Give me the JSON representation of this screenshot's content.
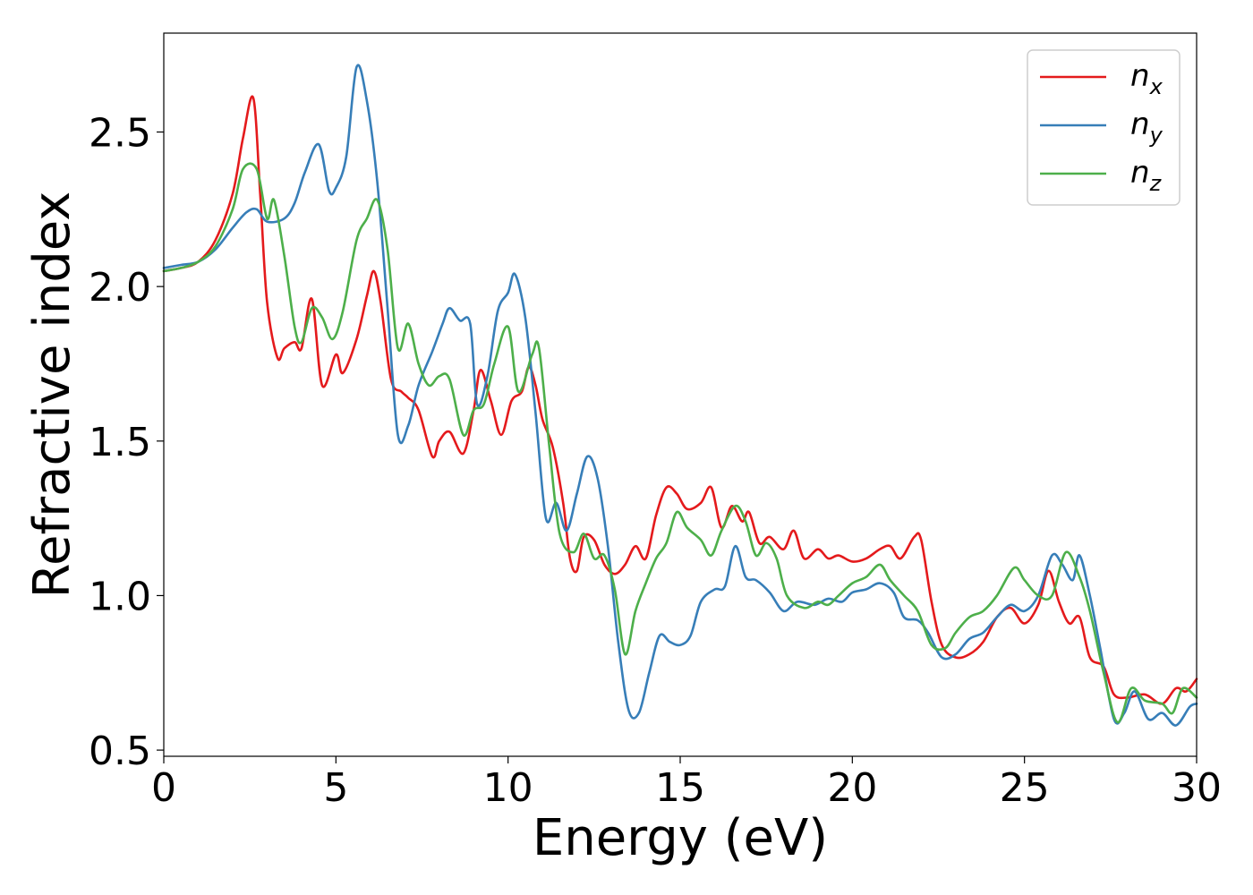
{
  "chart_data": {
    "type": "line",
    "title": "",
    "xlabel": "Energy (eV)",
    "ylabel": "Refractive index",
    "xlim": [
      0,
      30
    ],
    "ylim": [
      0.48,
      2.82
    ],
    "xticks": [
      0,
      5,
      10,
      15,
      20,
      25,
      30
    ],
    "xtick_labels": [
      "0",
      "5",
      "10",
      "15",
      "20",
      "25",
      "30"
    ],
    "yticks": [
      0.5,
      1.0,
      1.5,
      2.0,
      2.5
    ],
    "ytick_labels": [
      "0.5",
      "1.0",
      "1.5",
      "2.0",
      "2.5"
    ],
    "grid": false,
    "legend_position": "top-right",
    "series": [
      {
        "name": "n_x",
        "label_base": "n",
        "label_sub": "x",
        "color": "#e41a1c",
        "points": [
          [
            0,
            2.05
          ],
          [
            0.5,
            2.06
          ],
          [
            1,
            2.08
          ],
          [
            1.5,
            2.15
          ],
          [
            2,
            2.3
          ],
          [
            2.3,
            2.48
          ],
          [
            2.6,
            2.61
          ],
          [
            2.8,
            2.3
          ],
          [
            3.0,
            1.95
          ],
          [
            3.3,
            1.77
          ],
          [
            3.5,
            1.8
          ],
          [
            3.8,
            1.82
          ],
          [
            4.0,
            1.8
          ],
          [
            4.3,
            1.96
          ],
          [
            4.6,
            1.68
          ],
          [
            5.0,
            1.78
          ],
          [
            5.2,
            1.72
          ],
          [
            5.6,
            1.83
          ],
          [
            5.9,
            1.97
          ],
          [
            6.1,
            2.05
          ],
          [
            6.3,
            1.95
          ],
          [
            6.6,
            1.7
          ],
          [
            6.9,
            1.66
          ],
          [
            7.1,
            1.64
          ],
          [
            7.4,
            1.6
          ],
          [
            7.8,
            1.45
          ],
          [
            8.0,
            1.5
          ],
          [
            8.3,
            1.53
          ],
          [
            8.7,
            1.46
          ],
          [
            9.0,
            1.6
          ],
          [
            9.2,
            1.73
          ],
          [
            9.5,
            1.63
          ],
          [
            9.8,
            1.52
          ],
          [
            10.1,
            1.63
          ],
          [
            10.4,
            1.66
          ],
          [
            10.6,
            1.74
          ],
          [
            10.8,
            1.68
          ],
          [
            11.0,
            1.57
          ],
          [
            11.3,
            1.48
          ],
          [
            11.6,
            1.3
          ],
          [
            11.8,
            1.12
          ],
          [
            12.0,
            1.08
          ],
          [
            12.2,
            1.19
          ],
          [
            12.5,
            1.18
          ],
          [
            12.8,
            1.1
          ],
          [
            13.1,
            1.07
          ],
          [
            13.4,
            1.1
          ],
          [
            13.7,
            1.16
          ],
          [
            14.0,
            1.12
          ],
          [
            14.3,
            1.26
          ],
          [
            14.6,
            1.35
          ],
          [
            14.9,
            1.33
          ],
          [
            15.2,
            1.28
          ],
          [
            15.6,
            1.3
          ],
          [
            15.9,
            1.35
          ],
          [
            16.2,
            1.22
          ],
          [
            16.5,
            1.29
          ],
          [
            16.8,
            1.24
          ],
          [
            17.0,
            1.27
          ],
          [
            17.3,
            1.17
          ],
          [
            17.6,
            1.19
          ],
          [
            18.0,
            1.15
          ],
          [
            18.3,
            1.21
          ],
          [
            18.6,
            1.12
          ],
          [
            19.0,
            1.15
          ],
          [
            19.3,
            1.12
          ],
          [
            19.6,
            1.13
          ],
          [
            20.0,
            1.11
          ],
          [
            20.4,
            1.12
          ],
          [
            20.8,
            1.15
          ],
          [
            21.1,
            1.16
          ],
          [
            21.4,
            1.12
          ],
          [
            21.8,
            1.19
          ],
          [
            22.0,
            1.18
          ],
          [
            22.3,
            0.98
          ],
          [
            22.6,
            0.84
          ],
          [
            23.0,
            0.8
          ],
          [
            23.4,
            0.81
          ],
          [
            23.8,
            0.85
          ],
          [
            24.2,
            0.93
          ],
          [
            24.6,
            0.96
          ],
          [
            25.0,
            0.91
          ],
          [
            25.4,
            0.97
          ],
          [
            25.7,
            1.08
          ],
          [
            26.0,
            0.98
          ],
          [
            26.3,
            0.91
          ],
          [
            26.6,
            0.93
          ],
          [
            26.9,
            0.8
          ],
          [
            27.3,
            0.77
          ],
          [
            27.6,
            0.68
          ],
          [
            28.0,
            0.67
          ],
          [
            28.5,
            0.68
          ],
          [
            29.0,
            0.65
          ],
          [
            29.4,
            0.7
          ],
          [
            29.7,
            0.69
          ],
          [
            30.0,
            0.73
          ]
        ]
      },
      {
        "name": "n_y",
        "label_base": "n",
        "label_sub": "y",
        "color": "#377eb8",
        "points": [
          [
            0,
            2.06
          ],
          [
            0.5,
            2.07
          ],
          [
            1,
            2.08
          ],
          [
            1.5,
            2.12
          ],
          [
            2,
            2.19
          ],
          [
            2.4,
            2.24
          ],
          [
            2.7,
            2.25
          ],
          [
            3.0,
            2.21
          ],
          [
            3.5,
            2.22
          ],
          [
            3.8,
            2.27
          ],
          [
            4.1,
            2.37
          ],
          [
            4.5,
            2.46
          ],
          [
            4.8,
            2.31
          ],
          [
            5.0,
            2.32
          ],
          [
            5.3,
            2.42
          ],
          [
            5.6,
            2.71
          ],
          [
            5.9,
            2.6
          ],
          [
            6.2,
            2.34
          ],
          [
            6.5,
            1.93
          ],
          [
            6.8,
            1.52
          ],
          [
            7.1,
            1.55
          ],
          [
            7.4,
            1.68
          ],
          [
            7.8,
            1.79
          ],
          [
            8.1,
            1.88
          ],
          [
            8.3,
            1.93
          ],
          [
            8.6,
            1.89
          ],
          [
            8.9,
            1.88
          ],
          [
            9.1,
            1.62
          ],
          [
            9.4,
            1.71
          ],
          [
            9.7,
            1.92
          ],
          [
            10.0,
            1.98
          ],
          [
            10.2,
            2.04
          ],
          [
            10.5,
            1.9
          ],
          [
            10.8,
            1.59
          ],
          [
            11.1,
            1.25
          ],
          [
            11.4,
            1.3
          ],
          [
            11.7,
            1.21
          ],
          [
            12.0,
            1.33
          ],
          [
            12.3,
            1.45
          ],
          [
            12.6,
            1.38
          ],
          [
            12.9,
            1.16
          ],
          [
            13.2,
            0.85
          ],
          [
            13.5,
            0.63
          ],
          [
            13.8,
            0.62
          ],
          [
            14.1,
            0.75
          ],
          [
            14.4,
            0.87
          ],
          [
            14.7,
            0.85
          ],
          [
            15.0,
            0.84
          ],
          [
            15.3,
            0.87
          ],
          [
            15.6,
            0.98
          ],
          [
            16.0,
            1.02
          ],
          [
            16.3,
            1.03
          ],
          [
            16.6,
            1.16
          ],
          [
            16.9,
            1.06
          ],
          [
            17.2,
            1.05
          ],
          [
            17.6,
            1.01
          ],
          [
            18.0,
            0.95
          ],
          [
            18.4,
            0.98
          ],
          [
            18.9,
            0.97
          ],
          [
            19.3,
            0.99
          ],
          [
            19.7,
            0.98
          ],
          [
            20.0,
            1.01
          ],
          [
            20.4,
            1.02
          ],
          [
            20.8,
            1.04
          ],
          [
            21.2,
            1.01
          ],
          [
            21.5,
            0.93
          ],
          [
            21.9,
            0.92
          ],
          [
            22.2,
            0.88
          ],
          [
            22.6,
            0.8
          ],
          [
            23.0,
            0.81
          ],
          [
            23.4,
            0.86
          ],
          [
            23.8,
            0.88
          ],
          [
            24.2,
            0.93
          ],
          [
            24.6,
            0.97
          ],
          [
            25.0,
            0.95
          ],
          [
            25.4,
            1.0
          ],
          [
            25.8,
            1.13
          ],
          [
            26.1,
            1.1
          ],
          [
            26.4,
            1.05
          ],
          [
            26.6,
            1.13
          ],
          [
            26.9,
            1.0
          ],
          [
            27.2,
            0.83
          ],
          [
            27.6,
            0.6
          ],
          [
            27.9,
            0.62
          ],
          [
            28.2,
            0.69
          ],
          [
            28.6,
            0.6
          ],
          [
            29.0,
            0.62
          ],
          [
            29.4,
            0.58
          ],
          [
            29.8,
            0.64
          ],
          [
            30.0,
            0.65
          ]
        ]
      },
      {
        "name": "n_z",
        "label_base": "n",
        "label_sub": "z",
        "color": "#4daf4a",
        "points": [
          [
            0,
            2.05
          ],
          [
            0.5,
            2.06
          ],
          [
            1,
            2.08
          ],
          [
            1.5,
            2.13
          ],
          [
            2,
            2.25
          ],
          [
            2.3,
            2.38
          ],
          [
            2.7,
            2.38
          ],
          [
            3.0,
            2.22
          ],
          [
            3.2,
            2.28
          ],
          [
            3.5,
            2.1
          ],
          [
            3.8,
            1.87
          ],
          [
            4.0,
            1.82
          ],
          [
            4.3,
            1.93
          ],
          [
            4.6,
            1.9
          ],
          [
            4.9,
            1.83
          ],
          [
            5.2,
            1.92
          ],
          [
            5.6,
            2.15
          ],
          [
            5.9,
            2.22
          ],
          [
            6.2,
            2.28
          ],
          [
            6.5,
            2.12
          ],
          [
            6.8,
            1.8
          ],
          [
            7.1,
            1.88
          ],
          [
            7.4,
            1.75
          ],
          [
            7.7,
            1.68
          ],
          [
            8.0,
            1.71
          ],
          [
            8.3,
            1.7
          ],
          [
            8.7,
            1.52
          ],
          [
            9.0,
            1.6
          ],
          [
            9.3,
            1.62
          ],
          [
            9.6,
            1.75
          ],
          [
            10.0,
            1.87
          ],
          [
            10.3,
            1.66
          ],
          [
            10.7,
            1.78
          ],
          [
            10.9,
            1.8
          ],
          [
            11.2,
            1.48
          ],
          [
            11.5,
            1.2
          ],
          [
            11.9,
            1.14
          ],
          [
            12.2,
            1.2
          ],
          [
            12.5,
            1.12
          ],
          [
            12.8,
            1.13
          ],
          [
            13.1,
            1.02
          ],
          [
            13.4,
            0.81
          ],
          [
            13.7,
            0.95
          ],
          [
            14.0,
            1.04
          ],
          [
            14.3,
            1.12
          ],
          [
            14.6,
            1.17
          ],
          [
            14.9,
            1.27
          ],
          [
            15.2,
            1.22
          ],
          [
            15.6,
            1.18
          ],
          [
            15.9,
            1.13
          ],
          [
            16.2,
            1.21
          ],
          [
            16.6,
            1.29
          ],
          [
            16.9,
            1.24
          ],
          [
            17.2,
            1.13
          ],
          [
            17.5,
            1.17
          ],
          [
            17.8,
            1.12
          ],
          [
            18.1,
            1.0
          ],
          [
            18.6,
            0.96
          ],
          [
            19.0,
            0.98
          ],
          [
            19.3,
            0.97
          ],
          [
            19.6,
            1.0
          ],
          [
            20.0,
            1.04
          ],
          [
            20.4,
            1.06
          ],
          [
            20.8,
            1.1
          ],
          [
            21.1,
            1.05
          ],
          [
            21.5,
            1.0
          ],
          [
            21.9,
            0.95
          ],
          [
            22.3,
            0.84
          ],
          [
            22.7,
            0.83
          ],
          [
            23.0,
            0.88
          ],
          [
            23.4,
            0.93
          ],
          [
            23.8,
            0.95
          ],
          [
            24.2,
            1.0
          ],
          [
            24.7,
            1.09
          ],
          [
            25.0,
            1.05
          ],
          [
            25.4,
            1.0
          ],
          [
            25.8,
            1.0
          ],
          [
            26.2,
            1.14
          ],
          [
            26.6,
            1.06
          ],
          [
            26.9,
            0.95
          ],
          [
            27.3,
            0.75
          ],
          [
            27.7,
            0.59
          ],
          [
            28.1,
            0.7
          ],
          [
            28.5,
            0.66
          ],
          [
            29.0,
            0.65
          ],
          [
            29.3,
            0.62
          ],
          [
            29.6,
            0.7
          ],
          [
            30.0,
            0.67
          ]
        ]
      }
    ]
  }
}
